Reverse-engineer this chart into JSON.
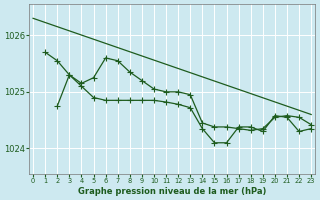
{
  "bg_color": "#cde9f0",
  "grid_color": "#b0d8e0",
  "line_color": "#1e5c1e",
  "xlabel": "Graphe pression niveau de la mer (hPa)",
  "xlim": [
    -0.3,
    23.3
  ],
  "ylim": [
    1023.55,
    1026.55
  ],
  "yticks": [
    1024,
    1025,
    1026
  ],
  "xticks": [
    0,
    1,
    2,
    3,
    4,
    5,
    6,
    7,
    8,
    9,
    10,
    11,
    12,
    13,
    14,
    15,
    16,
    17,
    18,
    19,
    20,
    21,
    22,
    23
  ],
  "series1_x": [
    0,
    23
  ],
  "series1_y": [
    1026.3,
    1024.6
  ],
  "series2_x": [
    1,
    2,
    3,
    4,
    5,
    6,
    7,
    8,
    9,
    10,
    11,
    12,
    13,
    14,
    15,
    16,
    17,
    18,
    19,
    20,
    21,
    22,
    23
  ],
  "series2_y": [
    1025.7,
    1025.55,
    1025.3,
    1025.15,
    1025.25,
    1025.6,
    1025.55,
    1025.35,
    1025.2,
    1025.05,
    1025.0,
    1025.0,
    1024.95,
    1024.45,
    1024.38,
    1024.38,
    1024.35,
    1024.32,
    1024.35,
    1024.55,
    1024.58,
    1024.55,
    1024.42
  ],
  "series3_x": [
    2,
    3,
    4,
    5,
    6,
    7,
    8,
    9,
    10,
    11,
    12,
    13,
    14,
    15,
    16,
    17,
    18,
    19,
    20,
    21,
    22,
    23
  ],
  "series3_y": [
    1024.75,
    1025.3,
    1025.1,
    1024.9,
    1024.85,
    1024.85,
    1024.85,
    1024.85,
    1024.85,
    1024.82,
    1024.78,
    1024.72,
    1024.35,
    1024.1,
    1024.1,
    1024.38,
    1024.38,
    1024.3,
    1024.58,
    1024.55,
    1024.3,
    1024.35
  ],
  "marker": "+",
  "marker_size": 4.5,
  "linewidth": 0.9
}
